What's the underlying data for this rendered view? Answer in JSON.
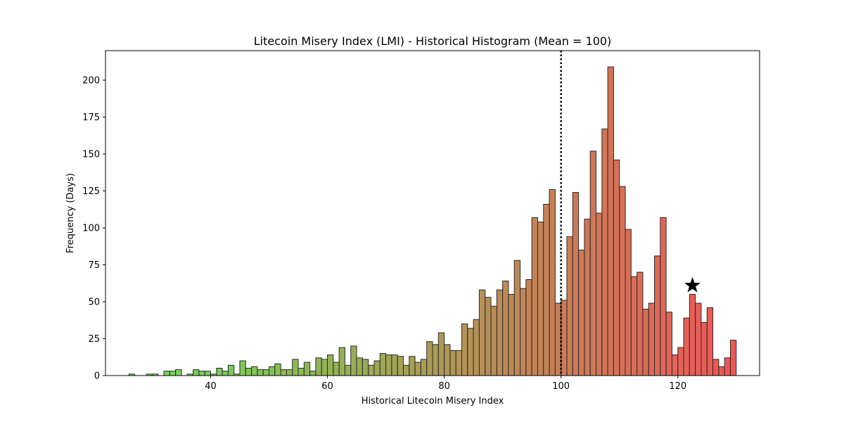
{
  "chart_data": {
    "type": "bar",
    "title": "Litecoin Misery Index (LMI) - Historical Histogram (Mean = 100)",
    "xlabel": "Historical Litecoin Misery Index",
    "ylabel": "Frequency (Days)",
    "xlim": [
      22,
      134
    ],
    "ylim": [
      0,
      220
    ],
    "xticks": [
      40,
      60,
      80,
      100,
      120
    ],
    "yticks": [
      0,
      25,
      50,
      75,
      100,
      125,
      150,
      175,
      200
    ],
    "grid": false,
    "bin_width": 1.0,
    "bin_left": [
      26,
      27,
      28,
      29,
      30,
      31,
      32,
      33,
      34,
      35,
      36,
      37,
      38,
      39,
      40,
      41,
      42,
      43,
      44,
      45,
      46,
      47,
      48,
      49,
      50,
      51,
      52,
      53,
      54,
      55,
      56,
      57,
      58,
      59,
      60,
      61,
      62,
      63,
      64,
      65,
      66,
      67,
      68,
      69,
      70,
      71,
      72,
      73,
      74,
      75,
      76,
      77,
      78,
      79,
      80,
      81,
      82,
      83,
      84,
      85,
      86,
      87,
      88,
      89,
      90,
      91,
      92,
      93,
      94,
      95,
      96,
      97,
      98,
      99,
      100,
      101,
      102,
      103,
      104,
      105,
      106,
      107,
      108,
      109,
      110,
      111,
      112,
      113,
      114,
      115,
      116,
      117,
      118,
      119,
      120,
      121,
      122,
      123,
      124,
      125,
      126,
      127,
      128,
      129
    ],
    "values": [
      1,
      0,
      0,
      1,
      1,
      0,
      3,
      3,
      4,
      0,
      1,
      4,
      3,
      3,
      1,
      5,
      3,
      7,
      1,
      10,
      5,
      6,
      4,
      4,
      6,
      8,
      4,
      4,
      11,
      5,
      9,
      3,
      12,
      11,
      14,
      9,
      19,
      7,
      20,
      12,
      11,
      7,
      10,
      15,
      14,
      14,
      13,
      7,
      13,
      9,
      11,
      23,
      21,
      29,
      21,
      17,
      17,
      35,
      32,
      38,
      58,
      53,
      47,
      58,
      64,
      55,
      78,
      59,
      65,
      107,
      104,
      116,
      126,
      49,
      51,
      94,
      124,
      85,
      106,
      152,
      110,
      167,
      209,
      146,
      128,
      99,
      67,
      70,
      45,
      49,
      81,
      107,
      43,
      14,
      19,
      39,
      55,
      49,
      36,
      46,
      11,
      6,
      12,
      24
    ],
    "color_low": "#55dd44",
    "color_high": "#ee4444",
    "bar_edge_color": "#2b2b2b",
    "mean_line": {
      "x": 100,
      "style": "dotted",
      "color": "#000000"
    },
    "current_marker": {
      "x": 122.5,
      "y": 61,
      "symbol": "star",
      "color": "#000000"
    }
  }
}
